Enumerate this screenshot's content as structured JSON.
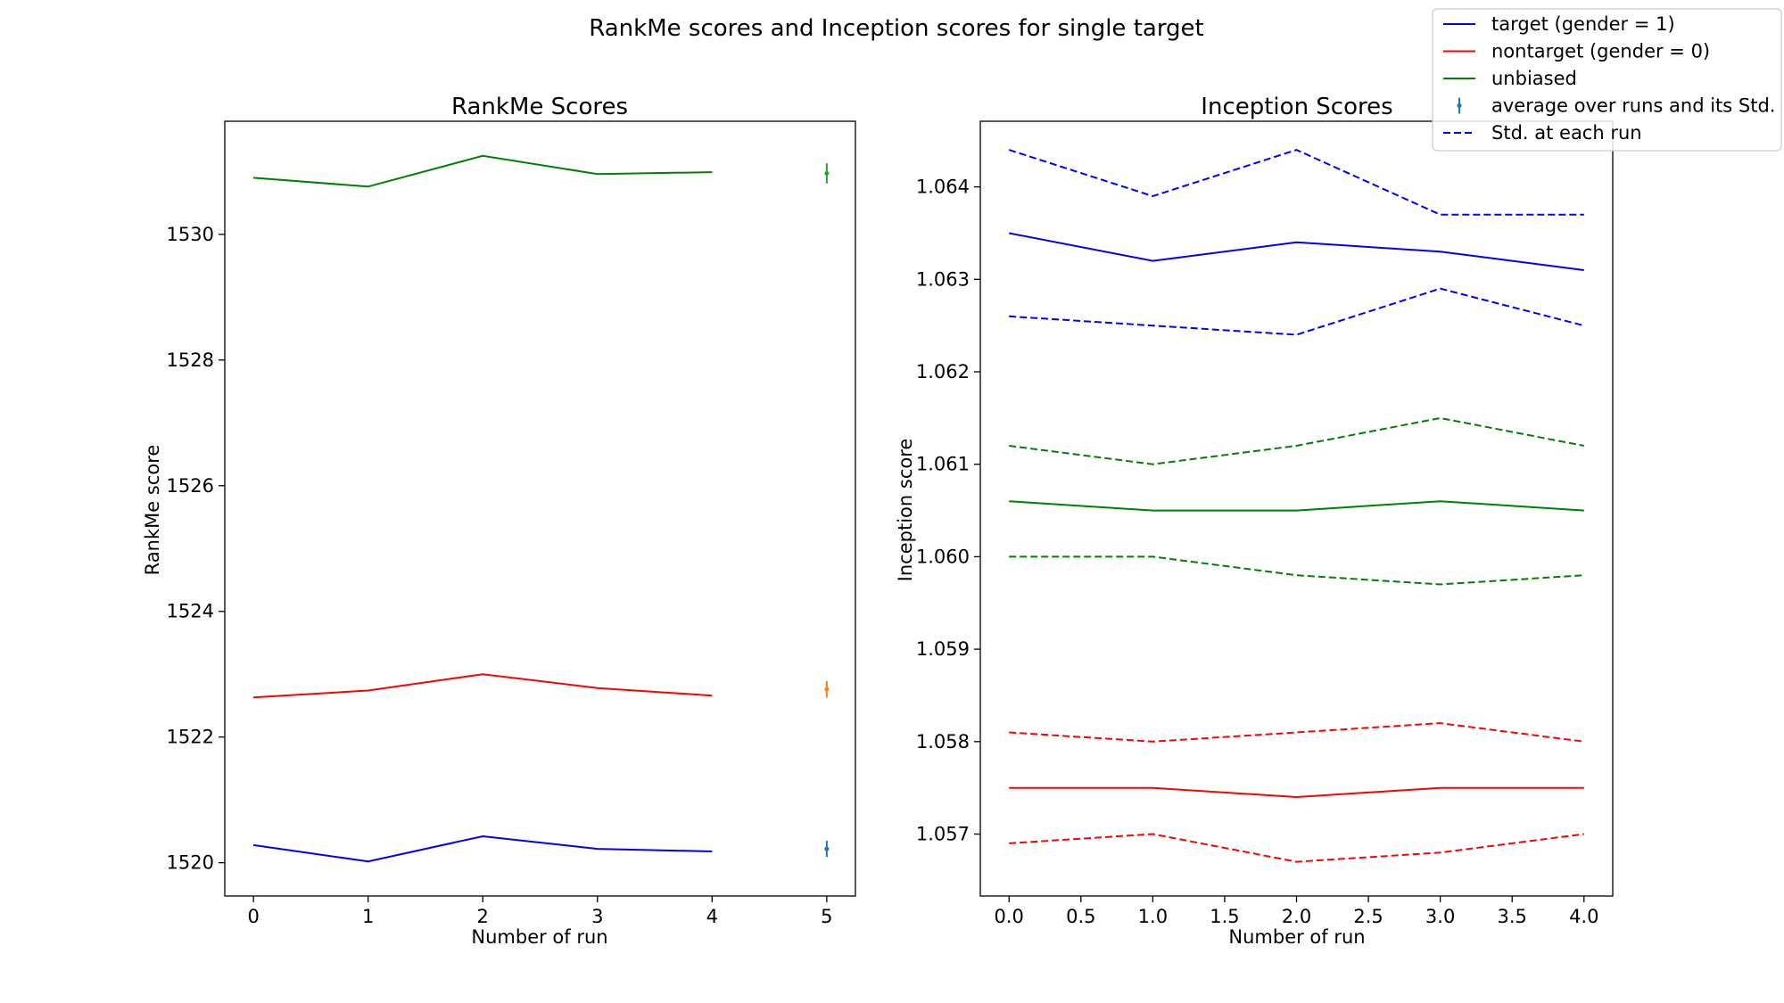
{
  "title": "RankMe scores and Inception scores for single target",
  "colors": {
    "target": "#0000ff",
    "nontarget": "#ff0000",
    "unbiased": "#008000",
    "avg_target": "#1f77b4",
    "avg_nontarget": "#ff7f0e",
    "avg_unbiased": "#2ca02c"
  },
  "legend": {
    "placement": "top-right",
    "entries": [
      {
        "label": "target (gender = 1)",
        "style": "solid",
        "color": "#0000ff"
      },
      {
        "label": "nontarget (gender = 0)",
        "style": "solid",
        "color": "#ff0000"
      },
      {
        "label": "unbiased",
        "style": "solid",
        "color": "#008000"
      },
      {
        "label": "average over runs and its Std.",
        "style": "errorbar",
        "color": "#1f77b4"
      },
      {
        "label": "Std. at each run",
        "style": "dashed",
        "color": "#0000ff"
      }
    ]
  },
  "chart_data": [
    {
      "type": "line",
      "title": "RankMe Scores",
      "xlabel": "Number of run",
      "ylabel": "RankMe score",
      "xlim": [
        -0.25,
        5.25
      ],
      "ylim": [
        1519.47,
        1531.8
      ],
      "xticks": [
        0,
        1,
        2,
        3,
        4,
        5
      ],
      "xtick_labels": [
        "0",
        "1",
        "2",
        "3",
        "4",
        "5"
      ],
      "yticks": [
        1520,
        1522,
        1524,
        1526,
        1528,
        1530
      ],
      "ytick_labels": [
        "1520",
        "1522",
        "1524",
        "1526",
        "1528",
        "1530"
      ],
      "x": [
        0,
        1,
        2,
        3,
        4
      ],
      "series": [
        {
          "name": "target (gender = 1)",
          "color": "#0000ff",
          "values": [
            1520.28,
            1520.02,
            1520.42,
            1520.22,
            1520.18
          ]
        },
        {
          "name": "nontarget (gender = 0)",
          "color": "#ff0000",
          "values": [
            1522.63,
            1522.74,
            1523.0,
            1522.78,
            1522.66
          ]
        },
        {
          "name": "unbiased",
          "color": "#008000",
          "values": [
            1530.9,
            1530.76,
            1531.25,
            1530.96,
            1530.99
          ]
        }
      ],
      "averages": [
        {
          "series": "target (gender = 1)",
          "x": 5,
          "mean": 1520.22,
          "std": 0.13,
          "color": "#1f77b4"
        },
        {
          "series": "nontarget (gender = 0)",
          "x": 5,
          "mean": 1522.76,
          "std": 0.13,
          "color": "#ff7f0e"
        },
        {
          "series": "unbiased",
          "x": 5,
          "mean": 1530.97,
          "std": 0.16,
          "color": "#2ca02c"
        }
      ]
    },
    {
      "type": "line",
      "title": "Inception Scores",
      "xlabel": "Number of run",
      "ylabel": "Inception score",
      "xlim": [
        -0.2,
        4.2
      ],
      "ylim": [
        1.05633,
        1.06471
      ],
      "xticks": [
        0,
        0.5,
        1,
        1.5,
        2,
        2.5,
        3,
        3.5,
        4
      ],
      "xtick_labels": [
        "0.0",
        "0.5",
        "1.0",
        "1.5",
        "2.0",
        "2.5",
        "3.0",
        "3.5",
        "4.0"
      ],
      "yticks": [
        1.057,
        1.058,
        1.059,
        1.06,
        1.061,
        1.062,
        1.063,
        1.064
      ],
      "ytick_labels": [
        "1.057",
        "1.058",
        "1.059",
        "1.060",
        "1.061",
        "1.062",
        "1.063",
        "1.064"
      ],
      "x": [
        0,
        1,
        2,
        3,
        4
      ],
      "series": [
        {
          "name": "target (gender = 1)",
          "color": "#0000ff",
          "values": [
            1.0635,
            1.0632,
            1.0634,
            1.0633,
            1.0631
          ],
          "std_upper": [
            1.0644,
            1.0639,
            1.0644,
            1.0637,
            1.0637
          ],
          "std_lower": [
            1.0626,
            1.0625,
            1.0624,
            1.0629,
            1.0625
          ]
        },
        {
          "name": "nontarget (gender = 0)",
          "color": "#ff0000",
          "values": [
            1.0575,
            1.0575,
            1.0574,
            1.0575,
            1.0575
          ],
          "std_upper": [
            1.0581,
            1.058,
            1.0581,
            1.0582,
            1.058
          ],
          "std_lower": [
            1.0569,
            1.057,
            1.0567,
            1.0568,
            1.057
          ]
        },
        {
          "name": "unbiased",
          "color": "#008000",
          "values": [
            1.0606,
            1.0605,
            1.0605,
            1.0606,
            1.0605
          ],
          "std_upper": [
            1.0612,
            1.061,
            1.0612,
            1.0615,
            1.0612
          ],
          "std_lower": [
            1.06,
            1.06,
            1.0598,
            1.0597,
            1.0598
          ]
        }
      ]
    }
  ]
}
